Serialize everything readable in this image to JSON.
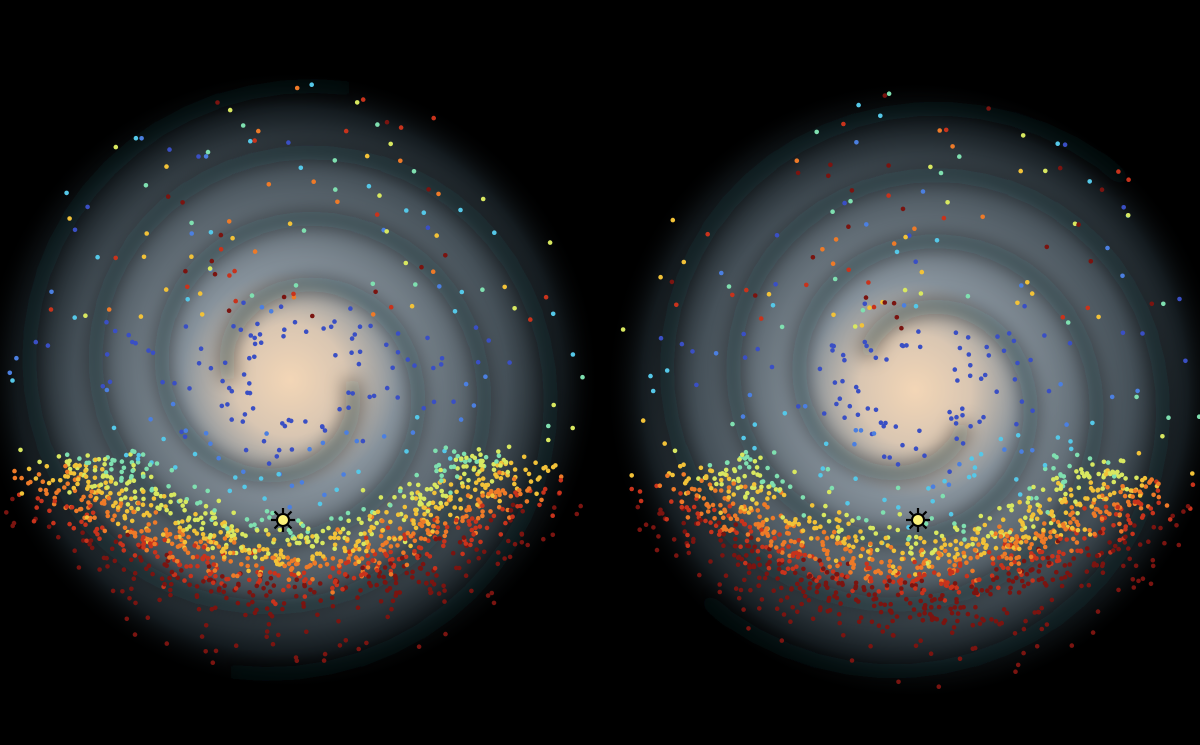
{
  "background_color": "#000000",
  "galaxy_colors": {
    "core": "#f3d6b6",
    "disk": "#8e9aa4",
    "halo": "#1c262c"
  },
  "colormap": [
    "#3a4fc4",
    "#4b7fe0",
    "#55c8e8",
    "#7fe0b0",
    "#d8e860",
    "#f2c238",
    "#ee7a28",
    "#c8331c",
    "#7a1410"
  ],
  "panels": [
    {
      "name": "left",
      "marker_icon": "sun-icon"
    },
    {
      "name": "right",
      "marker_icon": "sun-icon"
    }
  ]
}
